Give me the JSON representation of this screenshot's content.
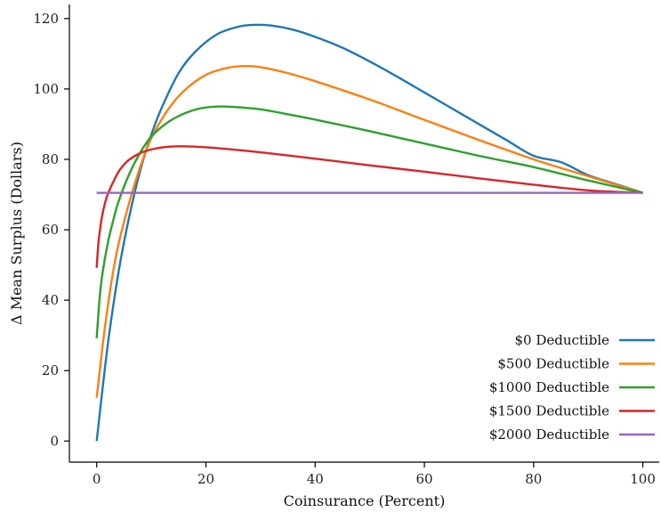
{
  "chart_data": {
    "type": "line",
    "title": "",
    "xlabel": "Coinsurance (Percent)",
    "ylabel": "Δ Mean Surplus (Dollars)",
    "xlim": [
      -5,
      103
    ],
    "ylim": [
      -6,
      124
    ],
    "x_ticks": [
      0,
      20,
      40,
      60,
      80,
      100
    ],
    "y_ticks": [
      0,
      20,
      40,
      60,
      80,
      100,
      120
    ],
    "x_tick_labels": [
      "0",
      "20",
      "40",
      "60",
      "80",
      "100"
    ],
    "y_tick_labels": [
      "0",
      "20",
      "40",
      "60",
      "80",
      "100",
      "120"
    ],
    "grid": false,
    "legend_position": "lower-right",
    "series": [
      {
        "name": "$0 Deductible",
        "color": "#1f77b4",
        "x": [
          0,
          2,
          4,
          6,
          8,
          10,
          12,
          15,
          18,
          22,
          26,
          29,
          32,
          36,
          40,
          45,
          50,
          55,
          60,
          65,
          70,
          75,
          80,
          85,
          90,
          95,
          100
        ],
        "y": [
          0,
          27,
          48,
          64,
          77,
          87,
          95,
          104.5,
          110.5,
          115.5,
          117.7,
          118.2,
          118,
          116.8,
          114.8,
          111.7,
          107.8,
          103.5,
          99,
          94.5,
          90,
          85.5,
          81,
          79.2,
          75.5,
          73,
          70.5
        ]
      },
      {
        "name": "$500 Deductible",
        "color": "#ff7f0e",
        "x": [
          0,
          1,
          2,
          3,
          4,
          6,
          8,
          10,
          13,
          16,
          20,
          24,
          27,
          30,
          35,
          40,
          50,
          60,
          70,
          80,
          90,
          100
        ],
        "y": [
          12.3,
          26,
          38,
          48,
          56,
          68,
          78,
          86,
          94,
          99.5,
          104,
          106,
          106.5,
          106.2,
          104.5,
          102.2,
          97,
          91.2,
          85.5,
          80,
          75.2,
          70.5
        ]
      },
      {
        "name": "$1000 Deductible",
        "color": "#2ca02c",
        "x": [
          0,
          0.5,
          1,
          2,
          3,
          4,
          6,
          8,
          10,
          13,
          16,
          19,
          22,
          25,
          30,
          35,
          40,
          50,
          60,
          70,
          80,
          90,
          100
        ],
        "y": [
          29.2,
          40,
          47,
          56,
          62.5,
          68,
          76,
          82,
          86.5,
          90.5,
          93,
          94.5,
          95,
          94.9,
          94.2,
          92.8,
          91.3,
          88,
          84.5,
          81,
          77.8,
          74,
          70.5
        ]
      },
      {
        "name": "$1500 Deductible",
        "color": "#d62728",
        "x": [
          0,
          0.3,
          0.7,
          1,
          1.5,
          2,
          3,
          4,
          5,
          6,
          8,
          10,
          12,
          15,
          18,
          22,
          30,
          40,
          50,
          60,
          70,
          80,
          90,
          100
        ],
        "y": [
          49.2,
          56,
          61,
          64,
          67.5,
          70,
          73.5,
          76.5,
          78.5,
          80,
          81.8,
          82.8,
          83.4,
          83.7,
          83.6,
          83.2,
          82,
          80.2,
          78.3,
          76.5,
          74.6,
          72.8,
          71.2,
          70.5
        ]
      },
      {
        "name": "$2000 Deductible",
        "color": "#9467bd",
        "x": [
          0,
          100
        ],
        "y": [
          70.5,
          70.5
        ]
      }
    ]
  }
}
